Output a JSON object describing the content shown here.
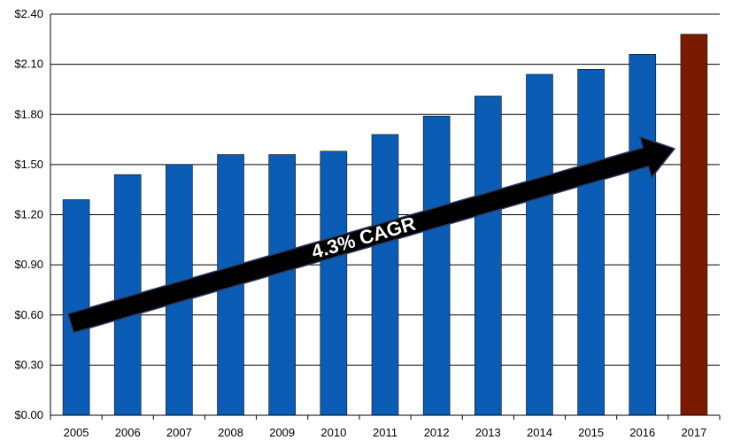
{
  "chart_data": {
    "type": "bar",
    "categories": [
      "2005",
      "2006",
      "2007",
      "2008",
      "2009",
      "2010",
      "2011",
      "2012",
      "2013",
      "2014",
      "2015",
      "2016",
      "2017"
    ],
    "values": [
      1.29,
      1.44,
      1.5,
      1.56,
      1.56,
      1.58,
      1.68,
      1.79,
      1.91,
      2.04,
      2.07,
      2.16,
      2.28
    ],
    "bar_colors": [
      "#0B5CB5",
      "#0B5CB5",
      "#0B5CB5",
      "#0B5CB5",
      "#0B5CB5",
      "#0B5CB5",
      "#0B5CB5",
      "#0B5CB5",
      "#0B5CB5",
      "#0B5CB5",
      "#0B5CB5",
      "#0B5CB5",
      "#7A1A00"
    ],
    "y_ticks": [
      0,
      0.3,
      0.6,
      0.9,
      1.2,
      1.5,
      1.8,
      2.1,
      2.4
    ],
    "y_tick_labels": [
      "$0.00",
      "$0.30",
      "$0.60",
      "$0.90",
      "$1.20",
      "$1.50",
      "$1.80",
      "$2.10",
      "$2.40"
    ],
    "ylim": [
      0,
      2.4
    ],
    "grid": true,
    "title": "",
    "xlabel": "",
    "ylabel": "",
    "annotation": {
      "text": "4.3% CAGR",
      "arrow_color": "#000000",
      "text_color": "#ffffff"
    }
  }
}
